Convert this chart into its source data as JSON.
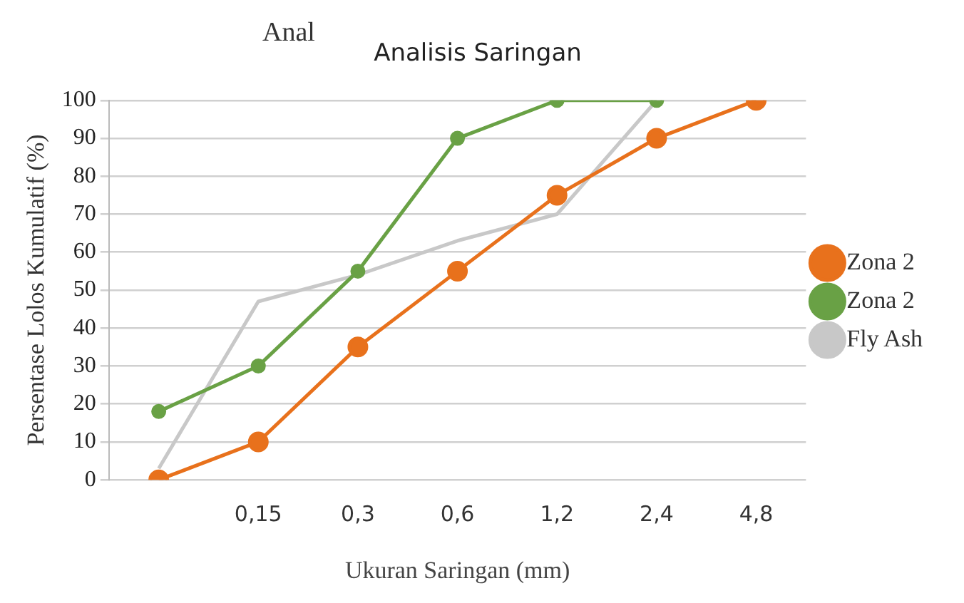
{
  "chart_data": {
    "type": "line",
    "title": "Analisis Saringan",
    "annotations": [
      "Anal"
    ],
    "xlabel": "Ukuran Saringan (mm)",
    "ylabel": "Persentase Lolos Kumulatif (%)",
    "categories": [
      null,
      "0,15",
      "0,3",
      "0,6",
      "1,2",
      "2,4",
      "4,8"
    ],
    "series": [
      {
        "name": "Zona 2",
        "color": "#e8711c",
        "marker": "circle",
        "values": [
          0,
          10,
          35,
          55,
          75,
          90,
          100
        ]
      },
      {
        "name": "Zona 2",
        "color": "#69a145",
        "marker": "circle",
        "values": [
          18,
          30,
          55,
          90,
          100,
          100,
          null
        ]
      },
      {
        "name": "Fly Ash",
        "color": "#c8c8c8",
        "marker": "none",
        "values": [
          3,
          47,
          54,
          63,
          70,
          100,
          null
        ]
      }
    ],
    "ylim": [
      0,
      100
    ],
    "yticks": [
      0,
      10,
      20,
      30,
      40,
      50,
      60,
      70,
      80,
      90,
      100
    ],
    "grid": "y",
    "legend": "right"
  }
}
